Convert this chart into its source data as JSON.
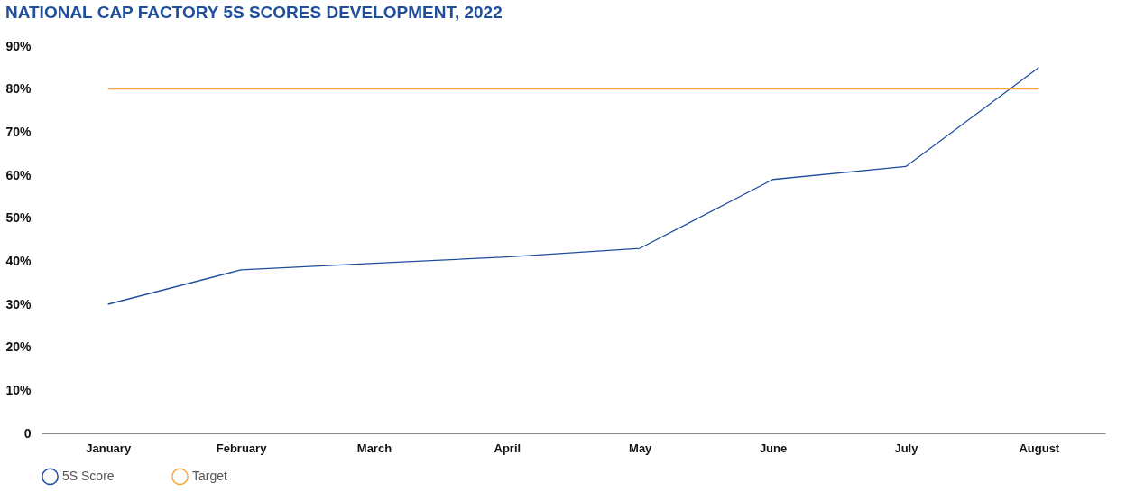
{
  "chart_data": {
    "type": "line",
    "title": "NATIONAL CAP FACTORY 5S SCORES DEVELOPMENT, 2022",
    "categories": [
      "January",
      "February",
      "March",
      "April",
      "May",
      "June",
      "July",
      "August"
    ],
    "series": [
      {
        "name": "5S Score",
        "color": "#1f4e9c",
        "values": [
          30,
          38,
          39.5,
          41,
          43,
          59,
          62,
          85
        ]
      },
      {
        "name": "Target",
        "color": "#f2a93b",
        "values": [
          80,
          80,
          80,
          80,
          80,
          80,
          80,
          80
        ]
      }
    ],
    "ylim": [
      0,
      90
    ],
    "yticks": [
      0,
      {
        "value": 10,
        "label": "10%"
      },
      {
        "value": 20,
        "label": "20%"
      },
      {
        "value": 30,
        "label": "30%"
      },
      {
        "value": 40,
        "label": "40%"
      },
      {
        "value": 50,
        "label": "50%"
      },
      {
        "value": 60,
        "label": "60%"
      },
      {
        "value": 70,
        "label": "70%"
      },
      {
        "value": 80,
        "label": "80%"
      },
      {
        "value": 90,
        "label": "90%"
      }
    ],
    "grid": false,
    "legend": "bottom left",
    "marker": "none",
    "line_style": "solid"
  }
}
